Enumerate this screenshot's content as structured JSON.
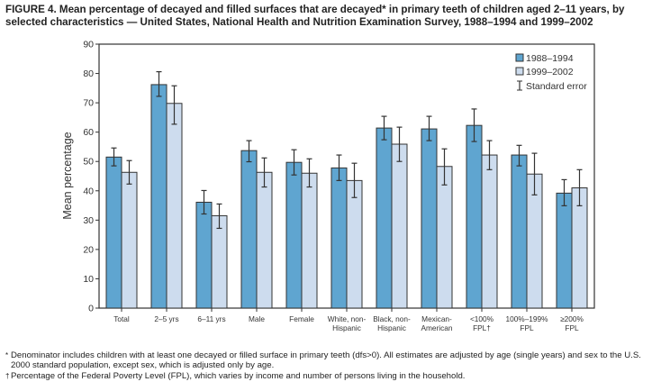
{
  "chart_data": {
    "type": "bar",
    "title": "FIGURE 4. Mean percentage of decayed and filled surfaces that are decayed* in primary teeth of children aged 2–11 years, by selected characteristics — United States, National Health and Nutrition Examination Survey, 1988–1994 and 1999–2002",
    "ylabel": "Mean percentage",
    "xlabel": "",
    "ylim": [
      0,
      90
    ],
    "yticks": [
      0,
      10,
      20,
      30,
      40,
      50,
      60,
      70,
      80,
      90
    ],
    "grid": false,
    "legend_position": "top-right",
    "categories": [
      [
        "Total"
      ],
      [
        "2–5 yrs"
      ],
      [
        "6–11 yrs"
      ],
      [
        "Male"
      ],
      [
        "Female"
      ],
      [
        "White, non-",
        "Hispanic"
      ],
      [
        "Black, non-",
        "Hispanic"
      ],
      [
        "Mexican-",
        "American"
      ],
      [
        "<100%",
        "FPL†"
      ],
      [
        "100%–199%",
        "FPL"
      ],
      [
        "≥200%",
        "FPL"
      ]
    ],
    "series": [
      {
        "name": "1988–1994",
        "color": "#5fa5d0",
        "values": [
          51.5,
          76.2,
          36.1,
          53.7,
          49.7,
          47.8,
          61.4,
          61.1,
          62.3,
          52.2,
          39.2
        ],
        "err_low": [
          48.5,
          72.2,
          32.1,
          49.9,
          45.4,
          43.5,
          57.4,
          57.1,
          56.8,
          48.5,
          34.9
        ],
        "err_high": [
          54.6,
          80.6,
          40.1,
          57.1,
          54.0,
          52.2,
          65.4,
          65.4,
          67.9,
          55.5,
          43.8
        ]
      },
      {
        "name": "1999–2002",
        "color": "#cddcee",
        "values": [
          46.3,
          69.8,
          31.5,
          46.3,
          46.0,
          43.5,
          55.9,
          48.3,
          52.2,
          45.7,
          41.0
        ],
        "err_low": [
          42.3,
          62.7,
          27.2,
          41.3,
          41.3,
          37.7,
          50.0,
          42.0,
          47.2,
          38.6,
          34.9
        ],
        "err_high": [
          50.3,
          75.8,
          35.5,
          51.2,
          50.9,
          49.4,
          61.7,
          54.3,
          57.1,
          52.8,
          47.2
        ]
      }
    ],
    "error_legend": "Standard error"
  },
  "footnotes": [
    {
      "symbol": "*",
      "text": "Denominator includes children with at least one decayed or filled surface in primary teeth (dfs>0). All estimates are adjusted by age (single years) and sex to the U.S. 2000 standard population, except sex, which is adjusted only by age."
    },
    {
      "symbol": "†",
      "text": "Percentage of the Federal Poverty Level (FPL), which varies by income and number of persons living in the household."
    }
  ]
}
